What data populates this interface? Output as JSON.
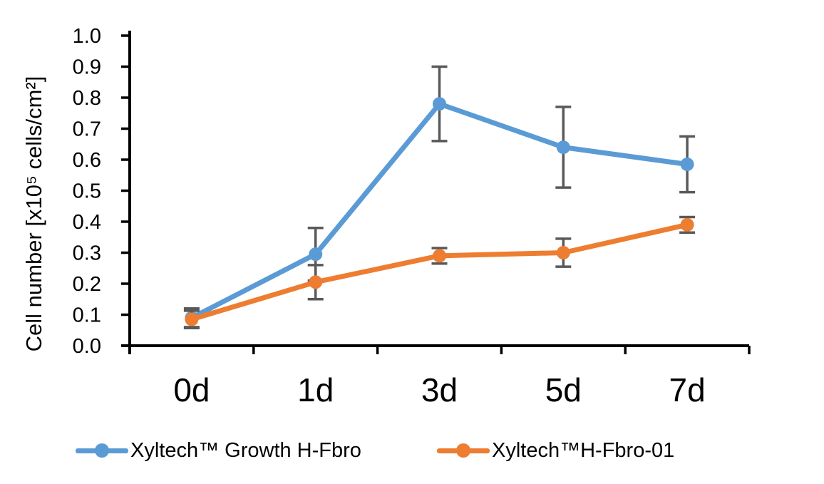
{
  "chart_data": {
    "type": "line",
    "categories": [
      "0d",
      "1d",
      "3d",
      "5d",
      "7d"
    ],
    "series": [
      {
        "name": "Xyltech™ Growth H-Fbro",
        "color": "#5B9BD5",
        "values": [
          0.09,
          0.295,
          0.78,
          0.64,
          0.585
        ],
        "errors": [
          0.03,
          0.085,
          0.12,
          0.13,
          0.09
        ]
      },
      {
        "name": "Xyltech™H-Fbro-01",
        "color": "#ED7D31",
        "values": [
          0.085,
          0.205,
          0.29,
          0.3,
          0.39
        ],
        "errors": [
          0.028,
          0.055,
          0.025,
          0.045,
          0.025
        ]
      }
    ],
    "title": "",
    "xlabel": "",
    "ylabel": "Cell number  [x10⁵ cells/cm²]",
    "ylim": [
      0.0,
      1.0
    ],
    "ytick_step": 0.1,
    "ytick_labels": [
      "0.0",
      "0.1",
      "0.2",
      "0.3",
      "0.4",
      "0.5",
      "0.6",
      "0.7",
      "0.8",
      "0.9",
      "1.0"
    ],
    "grid": false,
    "legend_position": "bottom",
    "error_bar_color": "#595959",
    "axis_color": "#000000",
    "background_color": "#FFFFFF"
  }
}
